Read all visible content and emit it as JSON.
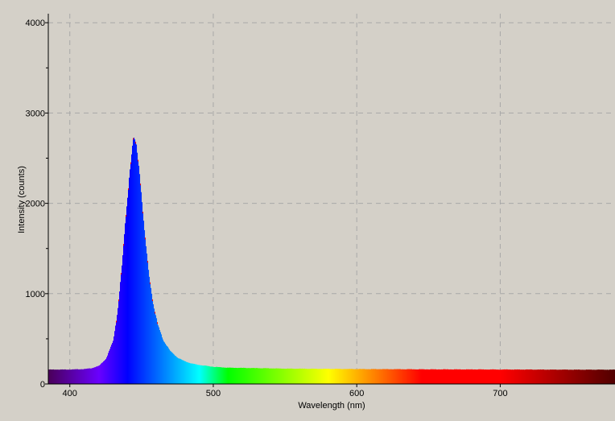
{
  "chart_data": {
    "type": "area",
    "title": "",
    "xlabel": "Wavelength (nm)",
    "ylabel": "Intensity (counts)",
    "xlim": [
      385,
      780
    ],
    "ylim": [
      0,
      4100
    ],
    "xticks": [
      400,
      500,
      600,
      700
    ],
    "yticks": [
      0,
      1000,
      2000,
      3000,
      4000
    ],
    "grid": true,
    "fill": "wavelength-rainbow",
    "colors": {
      "background": "#d4d0c8",
      "grid": "#a8a8a8",
      "outline": "#ff0000"
    },
    "series": [
      {
        "x": [
          385,
          400,
          410,
          415,
          420,
          425,
          430,
          433,
          436,
          439,
          442,
          444,
          446,
          448,
          450,
          452,
          455,
          458,
          461,
          465,
          470,
          475,
          480,
          485,
          490,
          495,
          500,
          510,
          520,
          550,
          600,
          650,
          700,
          750,
          780
        ],
        "y": [
          160,
          160,
          165,
          175,
          200,
          280,
          480,
          800,
          1300,
          1900,
          2450,
          2720,
          2650,
          2400,
          2050,
          1650,
          1200,
          880,
          660,
          480,
          360,
          290,
          250,
          225,
          210,
          200,
          190,
          180,
          178,
          170,
          165,
          162,
          160,
          158,
          158
        ]
      }
    ]
  }
}
